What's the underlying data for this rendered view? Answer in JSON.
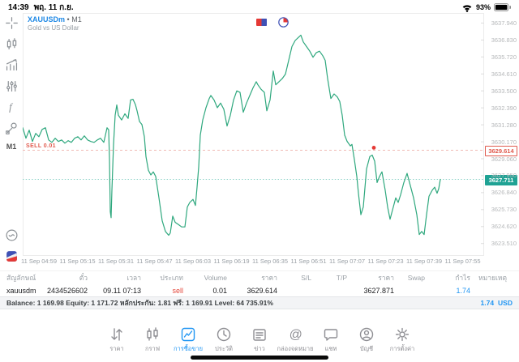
{
  "status_bar": {
    "time": "14:39",
    "date": "พฤ. 11 ก.ย.",
    "battery_percent": "93%"
  },
  "ui_colors": {
    "accent_blue": "#1e88e5",
    "line_green": "#2fa87e",
    "sell_red": "#e5493d",
    "tag_teal": "#1fa294"
  },
  "chart": {
    "symbol": "XAUUSDm",
    "separator": "•",
    "timeframe": "M1",
    "description": "Gold vs US Dollar",
    "sell_position_label": "SELL 0.01",
    "event_icons": [
      "calendar-flag-icon",
      "calendar-clock-icon"
    ]
  },
  "sidebar": {
    "icons": [
      "crosshair-icon",
      "candlesticks-icon",
      "indicators-icon",
      "trade-levels-icon",
      "functions-icon",
      "objects-icon"
    ],
    "timeframe_label": "M1",
    "bottom_icons": [
      "market-watch-icon",
      "calendar-logo-icon"
    ]
  },
  "chart_data": {
    "type": "line",
    "title": "XAUUSDm M1 — Gold vs US Dollar",
    "ylim": [
      3622.7,
      3638.6
    ],
    "y_ticks": [
      3637.94,
      3636.83,
      3635.72,
      3634.61,
      3633.5,
      3632.39,
      3631.28,
      3630.17,
      3629.06,
      3627.95,
      3626.84,
      3625.73,
      3624.62,
      3623.51
    ],
    "x_labels": [
      "11 Sep 04:59",
      "11 Sep 05:15",
      "11 Sep 05:31",
      "11 Sep 05:47",
      "11 Sep 06:03",
      "11 Sep 06:19",
      "11 Sep 06:35",
      "11 Sep 06:51",
      "11 Sep 07:07",
      "11 Sep 07:23",
      "11 Sep 07:39",
      "11 Sep 07:55"
    ],
    "legend_position": "none",
    "grid": false,
    "levels": [
      {
        "name": "sell-order-line",
        "label": "SELL 0.01",
        "price": 3629.614,
        "style": "dashed",
        "text_color": "#e05a4e",
        "line_color": "#f0b9b4"
      },
      {
        "name": "current-price-line",
        "label": "",
        "price": 3627.711,
        "style": "dotted",
        "text_color": "#ffffff",
        "line_color": "#8fd3c9"
      }
    ],
    "markers": [
      {
        "type": "sell-entry-dot",
        "x": 433,
        "price": 3629.78,
        "color": "#e53935"
      }
    ],
    "series": [
      {
        "name": "XAUUSDm bid",
        "color": "#2fa87e",
        "points": [
          [
            0,
            3631.09
          ],
          [
            4,
            3630.4
          ],
          [
            8,
            3630.93
          ],
          [
            12,
            3630.19
          ],
          [
            16,
            3630.72
          ],
          [
            20,
            3630.5
          ],
          [
            24,
            3630.98
          ],
          [
            28,
            3631.09
          ],
          [
            32,
            3630.29
          ],
          [
            36,
            3630.13
          ],
          [
            40,
            3630.4
          ],
          [
            44,
            3630.19
          ],
          [
            48,
            3630.29
          ],
          [
            52,
            3630.08
          ],
          [
            56,
            3630.24
          ],
          [
            60,
            3630.13
          ],
          [
            64,
            3630.4
          ],
          [
            68,
            3630.5
          ],
          [
            72,
            3630.29
          ],
          [
            76,
            3630.56
          ],
          [
            80,
            3630.29
          ],
          [
            84,
            3630.19
          ],
          [
            88,
            3630.13
          ],
          [
            92,
            3630.29
          ],
          [
            96,
            3630.4
          ],
          [
            100,
            3630.13
          ],
          [
            102,
            3630.6
          ],
          [
            104,
            3631.09
          ],
          [
            106,
            3630.95
          ],
          [
            107,
            3629.0
          ],
          [
            108,
            3625.6
          ],
          [
            109,
            3625.2
          ],
          [
            110,
            3627.0
          ],
          [
            112,
            3630.0
          ],
          [
            114,
            3631.9
          ],
          [
            116,
            3632.58
          ],
          [
            118,
            3631.9
          ],
          [
            122,
            3631.6
          ],
          [
            126,
            3632.0
          ],
          [
            130,
            3631.7
          ],
          [
            133,
            3632.9
          ],
          [
            136,
            3632.95
          ],
          [
            139,
            3632.6
          ],
          [
            141,
            3632.2
          ],
          [
            144,
            3631.5
          ],
          [
            147,
            3631.3
          ],
          [
            150,
            3630.5
          ],
          [
            152,
            3629.2
          ],
          [
            155,
            3628.3
          ],
          [
            158,
            3628.0
          ],
          [
            161,
            3628.2
          ],
          [
            164,
            3627.9
          ],
          [
            168,
            3626.5
          ],
          [
            172,
            3625.0
          ],
          [
            176,
            3624.3
          ],
          [
            180,
            3624.05
          ],
          [
            182,
            3624.2
          ],
          [
            185,
            3625.3
          ],
          [
            188,
            3624.9
          ],
          [
            192,
            3624.75
          ],
          [
            196,
            3624.6
          ],
          [
            200,
            3624.6
          ],
          [
            203,
            3625.9
          ],
          [
            206,
            3626.2
          ],
          [
            210,
            3626.4
          ],
          [
            213,
            3626.0
          ],
          [
            215,
            3627.2
          ],
          [
            217,
            3628.5
          ],
          [
            219,
            3630.6
          ],
          [
            222,
            3631.6
          ],
          [
            226,
            3632.4
          ],
          [
            230,
            3633.0
          ],
          [
            232,
            3633.2
          ],
          [
            236,
            3632.9
          ],
          [
            240,
            3632.4
          ],
          [
            244,
            3632.7
          ],
          [
            248,
            3632.3
          ],
          [
            252,
            3631.2
          ],
          [
            256,
            3631.9
          ],
          [
            260,
            3632.9
          ],
          [
            264,
            3633.5
          ],
          [
            268,
            3633.4
          ],
          [
            272,
            3632.1
          ],
          [
            276,
            3632.7
          ],
          [
            280,
            3633.2
          ],
          [
            284,
            3633.7
          ],
          [
            288,
            3634.1
          ],
          [
            290,
            3633.9
          ],
          [
            294,
            3633.6
          ],
          [
            298,
            3633.4
          ],
          [
            301,
            3632.2
          ],
          [
            305,
            3632.9
          ],
          [
            309,
            3634.8
          ],
          [
            312,
            3633.9
          ],
          [
            316,
            3634.1
          ],
          [
            320,
            3634.3
          ],
          [
            324,
            3634.6
          ],
          [
            328,
            3635.5
          ],
          [
            332,
            3636.4
          ],
          [
            336,
            3636.8
          ],
          [
            340,
            3637.0
          ],
          [
            343,
            3637.15
          ],
          [
            346,
            3636.7
          ],
          [
            350,
            3636.4
          ],
          [
            354,
            3636.1
          ],
          [
            358,
            3635.7
          ],
          [
            362,
            3636.0
          ],
          [
            366,
            3636.1
          ],
          [
            370,
            3635.8
          ],
          [
            373,
            3635.5
          ],
          [
            376,
            3634.3
          ],
          [
            380,
            3633.0
          ],
          [
            384,
            3633.3
          ],
          [
            388,
            3633.1
          ],
          [
            391,
            3632.8
          ],
          [
            394,
            3631.9
          ],
          [
            397,
            3630.6
          ],
          [
            400,
            3630.2
          ],
          [
            404,
            3629.9
          ],
          [
            406,
            3630.0
          ],
          [
            409,
            3629.0
          ],
          [
            412,
            3627.9
          ],
          [
            414,
            3626.8
          ],
          [
            417,
            3625.4
          ],
          [
            420,
            3625.9
          ],
          [
            424,
            3628.4
          ],
          [
            428,
            3629.2
          ],
          [
            431,
            3629.3
          ],
          [
            434,
            3628.9
          ],
          [
            437,
            3627.5
          ],
          [
            440,
            3627.9
          ],
          [
            443,
            3628.2
          ],
          [
            447,
            3627.0
          ],
          [
            450,
            3625.9
          ],
          [
            453,
            3625.1
          ],
          [
            456,
            3625.7
          ],
          [
            460,
            3626.5
          ],
          [
            463,
            3626.2
          ],
          [
            466,
            3626.7
          ],
          [
            470,
            3627.5
          ],
          [
            474,
            3628.1
          ],
          [
            478,
            3627.3
          ],
          [
            482,
            3626.5
          ],
          [
            486,
            3625.4
          ],
          [
            489,
            3624.1
          ],
          [
            492,
            3624.3
          ],
          [
            495,
            3624.1
          ],
          [
            498,
            3625.4
          ],
          [
            501,
            3626.6
          ],
          [
            505,
            3627.0
          ],
          [
            508,
            3627.2
          ],
          [
            511,
            3626.8
          ],
          [
            513,
            3627.1
          ],
          [
            515,
            3627.711
          ]
        ]
      }
    ]
  },
  "positions_table": {
    "headers": [
      "สัญลักษณ์",
      "ตั๋ว",
      "เวลา",
      "ประเภท",
      "Volume",
      "ราคา",
      "S/L",
      "T/P",
      "ราคา",
      "Swap",
      "กำไร",
      "หมายเหตุ"
    ],
    "rows": [
      [
        "xauusdm",
        "2434526602",
        "09.11 07:13",
        "sell",
        "0.01",
        "3629.614",
        "",
        "",
        "3627.871",
        "",
        "1.74",
        ""
      ]
    ]
  },
  "account_bar": {
    "summary": "Balance: 1 169.98 Equity: 1 171.72 หลักประกัน: 1.81 ฟรี: 1 169.91 Level: 64 735.91%",
    "profit": "1.74",
    "currency": "USD"
  },
  "nav": {
    "active_index": 2,
    "items": [
      {
        "label": "ราคา",
        "icon": "quotes-icon"
      },
      {
        "label": "กราฟ",
        "icon": "charts-icon"
      },
      {
        "label": "การซื้อขาย",
        "icon": "trade-icon"
      },
      {
        "label": "ประวัติ",
        "icon": "history-icon"
      },
      {
        "label": "ข่าว",
        "icon": "news-icon"
      },
      {
        "label": "กล่องจดหมาย",
        "icon": "mailbox-icon"
      },
      {
        "label": "แชท",
        "icon": "chat-icon"
      },
      {
        "label": "บัญชี",
        "icon": "account-icon"
      },
      {
        "label": "การตั้งค่า",
        "icon": "settings-icon"
      }
    ]
  }
}
